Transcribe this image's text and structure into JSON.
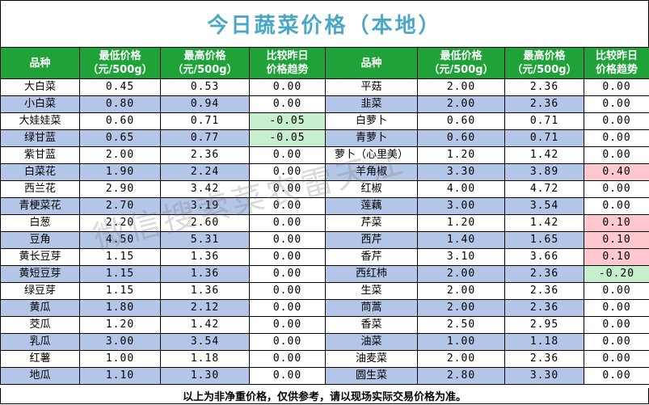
{
  "title": "今日蔬菜价格（本地）",
  "headers": {
    "name": "品种",
    "low": "最低价格\n（元/500g）",
    "high": "最高价格\n（元/500g）",
    "trend": "比较昨日\n价格趋势"
  },
  "colors": {
    "header_bg": "#1fa339",
    "title": "#4aa8c7",
    "row_highlight": "#b4c6e7",
    "down": "#c6efce",
    "up": "#ffc7ce"
  },
  "rows": [
    {
      "l": {
        "name": "大白菜",
        "low": "0.45",
        "high": "0.53",
        "trend": "0.00"
      },
      "r": {
        "name": "平菇",
        "low": "2.00",
        "high": "2.36",
        "trend": "0.00"
      }
    },
    {
      "l": {
        "name": "小白菜",
        "low": "0.80",
        "high": "0.94",
        "trend": "0.00"
      },
      "r": {
        "name": "韭菜",
        "low": "2.00",
        "high": "2.36",
        "trend": "0.00"
      }
    },
    {
      "l": {
        "name": "大娃娃菜",
        "low": "0.60",
        "high": "0.71",
        "trend": "-0.05"
      },
      "r": {
        "name": "白萝卜",
        "low": "0.60",
        "high": "0.71",
        "trend": "0.00"
      }
    },
    {
      "l": {
        "name": "绿甘蓝",
        "low": "0.65",
        "high": "0.77",
        "trend": "-0.05"
      },
      "r": {
        "name": "青萝卜",
        "low": "0.60",
        "high": "0.71",
        "trend": "0.00"
      }
    },
    {
      "l": {
        "name": "紫甘蓝",
        "low": "2.00",
        "high": "2.36",
        "trend": "0.00"
      },
      "r": {
        "name": "萝卜（心里美）",
        "low": "1.20",
        "high": "1.42",
        "trend": "0.00"
      }
    },
    {
      "l": {
        "name": "白菜花",
        "low": "1.90",
        "high": "2.24",
        "trend": "0.00"
      },
      "r": {
        "name": "羊角椒",
        "low": "3.30",
        "high": "3.89",
        "trend": "0.40"
      }
    },
    {
      "l": {
        "name": "西兰花",
        "low": "2.90",
        "high": "3.42",
        "trend": "0.00"
      },
      "r": {
        "name": "红椒",
        "low": "4.00",
        "high": "4.72",
        "trend": "0.00"
      }
    },
    {
      "l": {
        "name": "青梗菜花",
        "low": "2.70",
        "high": "3.19",
        "trend": "0.00"
      },
      "r": {
        "name": "莲藕",
        "low": "3.00",
        "high": "3.54",
        "trend": "0.00"
      }
    },
    {
      "l": {
        "name": "白葱",
        "low": "2.20",
        "high": "2.60",
        "trend": "0.00"
      },
      "r": {
        "name": "芹菜",
        "low": "1.20",
        "high": "1.42",
        "trend": "0.10"
      }
    },
    {
      "l": {
        "name": "豆角",
        "low": "4.50",
        "high": "5.31",
        "trend": "0.00"
      },
      "r": {
        "name": "西芹",
        "low": "1.40",
        "high": "1.65",
        "trend": "0.10"
      }
    },
    {
      "l": {
        "name": "黄长豆芽",
        "low": "1.15",
        "high": "1.36",
        "trend": "0.00"
      },
      "r": {
        "name": "香芹",
        "low": "3.10",
        "high": "3.66",
        "trend": "0.10"
      }
    },
    {
      "l": {
        "name": "黄短豆芽",
        "low": "1.15",
        "high": "1.36",
        "trend": "0.00"
      },
      "r": {
        "name": "西红柿",
        "low": "2.00",
        "high": "2.36",
        "trend": "-0.20"
      }
    },
    {
      "l": {
        "name": "绿豆芽",
        "low": "1.15",
        "high": "1.36",
        "trend": "0.00"
      },
      "r": {
        "name": "生菜",
        "low": "2.00",
        "high": "2.36",
        "trend": "0.00"
      }
    },
    {
      "l": {
        "name": "黄瓜",
        "low": "1.80",
        "high": "2.12",
        "trend": "0.00"
      },
      "r": {
        "name": "茼蒿",
        "low": "2.00",
        "high": "2.36",
        "trend": "0.00"
      }
    },
    {
      "l": {
        "name": "茭瓜",
        "low": "1.20",
        "high": "1.42",
        "trend": "0.00"
      },
      "r": {
        "name": "香菜",
        "low": "2.50",
        "high": "2.95",
        "trend": "0.00"
      }
    },
    {
      "l": {
        "name": "乳瓜",
        "low": "3.00",
        "high": "3.54",
        "trend": "0.00"
      },
      "r": {
        "name": "油菜",
        "low": "1.00",
        "high": "1.18",
        "trend": "0.00"
      }
    },
    {
      "l": {
        "name": "红薯",
        "low": "1.00",
        "high": "1.18",
        "trend": "0.00"
      },
      "r": {
        "name": "油麦菜",
        "low": "2.00",
        "high": "2.36",
        "trend": "0.00"
      }
    },
    {
      "l": {
        "name": "地瓜",
        "low": "1.10",
        "high": "1.30",
        "trend": "0.00"
      },
      "r": {
        "name": "圆生菜",
        "low": "2.80",
        "high": "3.30",
        "trend": "0.00"
      }
    }
  ],
  "footer": "以上为非净重价格，仅供参考，请以现场实际交易价格为准。",
  "watermark": "微信搜索菜农雷天江"
}
